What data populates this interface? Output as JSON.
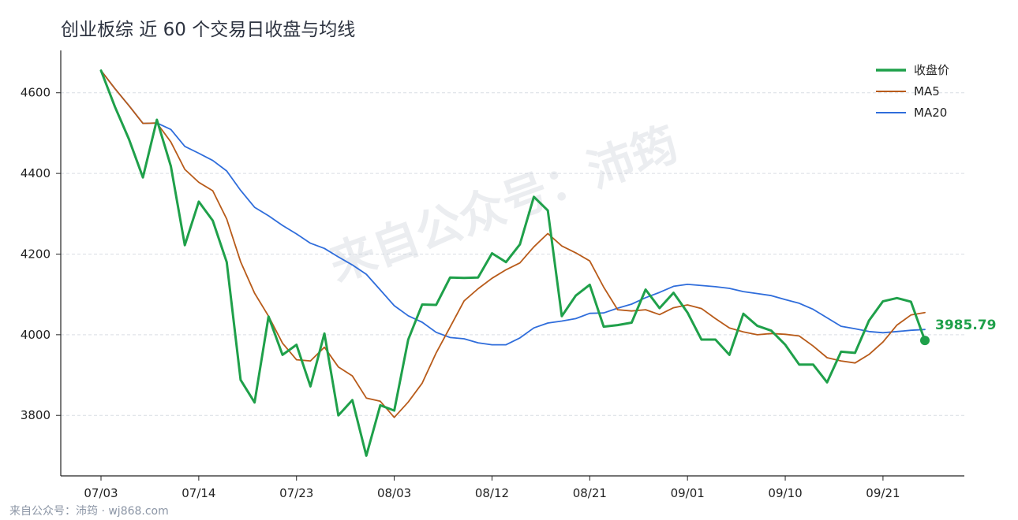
{
  "chart_data": {
    "type": "line",
    "title": "创业板综 近 60 个交易日收盘与均线",
    "xlabel": "",
    "ylabel": "",
    "ylim": [
      3650,
      4705
    ],
    "yticks": [
      3800,
      4000,
      4200,
      4400,
      4600
    ],
    "xtick_labels": [
      "07/03",
      "07/14",
      "07/23",
      "08/03",
      "08/12",
      "08/21",
      "09/01",
      "09/10",
      "09/21"
    ],
    "xtick_index": [
      0,
      7,
      14,
      21,
      28,
      35,
      42,
      49,
      56
    ],
    "grid": "horizontal dashed",
    "legend_position": "top-right",
    "series": [
      {
        "name": "收盘价",
        "color": "#1fa04a",
        "values": [
          4655,
          4565,
          4485,
          4390,
          4533,
          4418,
          4222,
          4330,
          4283,
          4180,
          3888,
          3832,
          4045,
          3950,
          3975,
          3872,
          4003,
          3800,
          3838,
          3700,
          3825,
          3812,
          3988,
          4075,
          4074,
          4142,
          4141,
          4142,
          4202,
          4180,
          4224,
          4342,
          4308,
          4046,
          4097,
          4124,
          4020,
          4024,
          4030,
          4112,
          4066,
          4104,
          4055,
          3988,
          3988,
          3950,
          4052,
          4022,
          4010,
          3975,
          3926,
          3926,
          3882,
          3958,
          3955,
          4035,
          4083,
          4091,
          4082,
          3985.79
        ]
      },
      {
        "name": "MA5",
        "color": "#b85b1a",
        "values": [
          4655,
          4610,
          4568,
          4524,
          4525,
          4478,
          4410,
          4378,
          4357,
          4287,
          4181,
          4103,
          4046,
          3979,
          3938,
          3935,
          3969,
          3920,
          3898,
          3843,
          3835,
          3795,
          3833,
          3880,
          3955,
          4019,
          4084,
          4114,
          4140,
          4161,
          4178,
          4218,
          4251,
          4220,
          4203,
          4183,
          4118,
          4062,
          4059,
          4062,
          4050,
          4067,
          4074,
          4065,
          4040,
          4017,
          4007,
          4000,
          4003,
          4001,
          3997,
          3972,
          3943,
          3935,
          3930,
          3951,
          3982,
          4024,
          4049,
          4055
        ]
      },
      {
        "name": "MA20",
        "color": "#2f6ddb",
        "values": [
          4655,
          4610,
          4568,
          4524,
          4525,
          4509,
          4467,
          4450,
          4432,
          4406,
          4358,
          4316,
          4295,
          4271,
          4250,
          4227,
          4214,
          4193,
          4173,
          4150,
          4111,
          4072,
          4047,
          4031,
          4006,
          3993,
          3990,
          3980,
          3975,
          3975,
          3992,
          4017,
          4029,
          4034,
          4040,
          4053,
          4054,
          4066,
          4076,
          4092,
          4105,
          4120,
          4125,
          4122,
          4119,
          4115,
          4107,
          4102,
          4097,
          4087,
          4078,
          4063,
          4042,
          4021,
          4015,
          4008,
          4005,
          4008,
          4011,
          4013
        ]
      }
    ],
    "last_value_label": "3985.79",
    "annotations": [
      "来自公众号：沛筠"
    ]
  },
  "source": "来自公众号：沛筠 · wj868.com"
}
